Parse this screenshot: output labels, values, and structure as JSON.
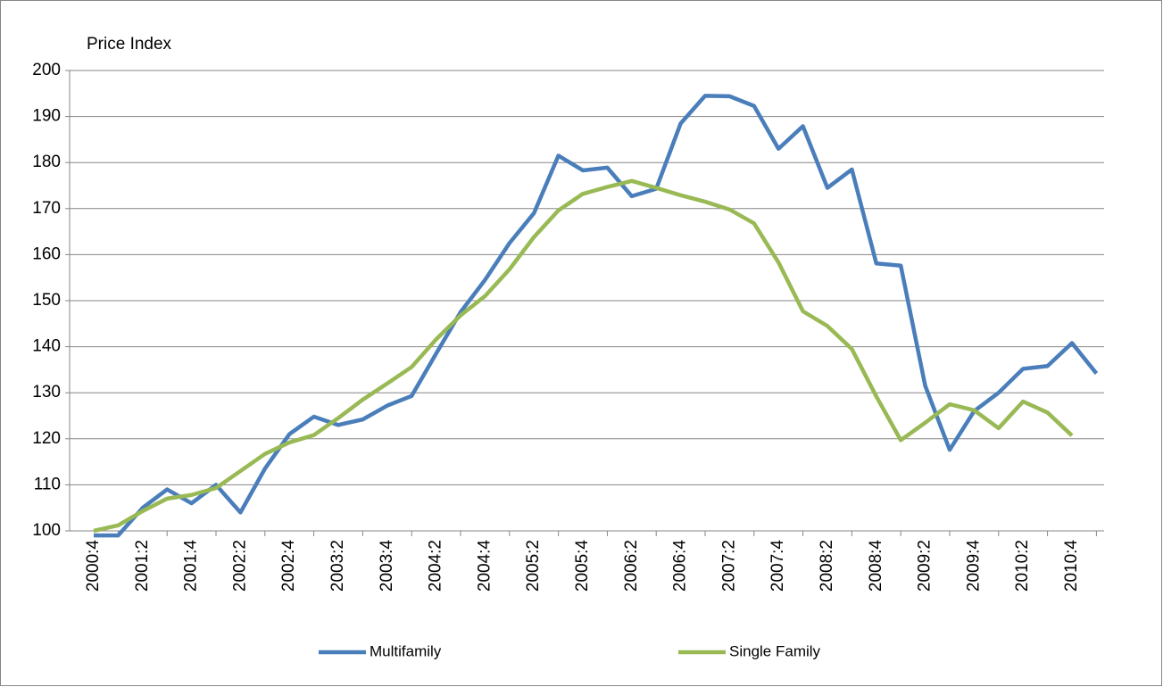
{
  "chart_data": {
    "type": "line",
    "y_label": "Price Index",
    "categories": [
      "2000:4",
      null,
      "2001:2",
      null,
      "2001:4",
      null,
      "2002:2",
      null,
      "2002:4",
      null,
      "2003:2",
      null,
      "2003:4",
      null,
      "2004:2",
      null,
      "2004:4",
      null,
      "2005:2",
      null,
      "2005:4",
      null,
      "2006:2",
      null,
      "2006:4",
      null,
      "2007:2",
      null,
      "2007:4",
      null,
      "2008:2",
      null,
      "2008:4",
      null,
      "2009:2",
      null,
      "2009:4",
      null,
      "2010:2",
      null,
      "2010:4",
      null
    ],
    "series": [
      {
        "name": "Multifamily",
        "color": "#4a7ebb",
        "values": [
          99,
          99,
          105,
          109,
          106,
          110,
          104,
          113.5,
          121,
          124.8,
          123,
          124.2,
          127.2,
          129.3,
          138.5,
          147.5,
          154.5,
          162.5,
          169,
          181.5,
          178.3,
          178.9,
          172.7,
          174.3,
          188.5,
          194.5,
          194.4,
          192.3,
          183,
          187.9,
          174.5,
          178.5,
          158.1,
          157.6,
          131.5,
          117.6,
          126,
          130,
          135.2,
          135.8,
          140.8,
          134.2
        ]
      },
      {
        "name": "Single Family",
        "color": "#98b954",
        "values": [
          100,
          101.2,
          104.3,
          107,
          107.8,
          109.3,
          113,
          116.7,
          119.2,
          120.8,
          124.5,
          128.5,
          132,
          135.6,
          141.6,
          146.8,
          151,
          156.8,
          163.8,
          169.6,
          173.2,
          174.7,
          176,
          174.5,
          172.9,
          171.5,
          169.8,
          166.8,
          158.3,
          147.7,
          144.5,
          139.5,
          129.2,
          119.7,
          123.5,
          127.5,
          126.2,
          122.3,
          128.1,
          125.7,
          120.7,
          null
        ]
      }
    ],
    "ylim": [
      100,
      200
    ],
    "yticks": [
      100,
      110,
      120,
      130,
      140,
      150,
      160,
      170,
      180,
      190,
      200
    ],
    "grid": true,
    "legend": "bottom"
  }
}
